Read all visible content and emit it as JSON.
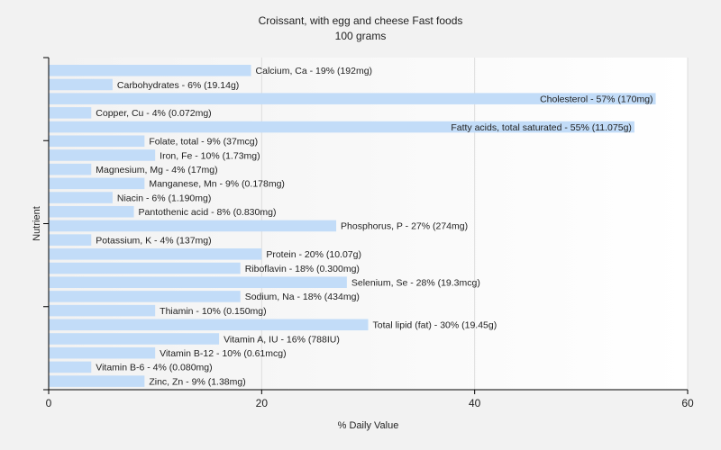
{
  "chart_data": {
    "type": "bar",
    "orientation": "horizontal",
    "title": "Croissant, with egg and cheese Fast foods",
    "subtitle": "100 grams",
    "xlabel": "% Daily Value",
    "ylabel": "Nutrient",
    "xlim": [
      0,
      60
    ],
    "xticks": [
      0,
      20,
      40,
      60
    ],
    "grid": true,
    "bar_color": "#c2dcf8",
    "categories": [
      "Calcium, Ca",
      "Carbohydrates",
      "Cholesterol",
      "Copper, Cu",
      "Fatty acids, total saturated",
      "Folate, total",
      "Iron, Fe",
      "Magnesium, Mg",
      "Manganese, Mn",
      "Niacin",
      "Pantothenic acid",
      "Phosphorus, P",
      "Potassium, K",
      "Protein",
      "Riboflavin",
      "Selenium, Se",
      "Sodium, Na",
      "Thiamin",
      "Total lipid (fat)",
      "Vitamin A, IU",
      "Vitamin B-12",
      "Vitamin B-6",
      "Zinc, Zn"
    ],
    "values": [
      19,
      6,
      57,
      4,
      55,
      9,
      10,
      4,
      9,
      6,
      8,
      27,
      4,
      20,
      18,
      28,
      18,
      10,
      30,
      16,
      10,
      4,
      9
    ],
    "labels": [
      "Calcium, Ca - 19% (192mg)",
      "Carbohydrates - 6% (19.14g)",
      "Cholesterol - 57% (170mg)",
      "Copper, Cu - 4% (0.072mg)",
      "Fatty acids, total saturated - 55% (11.075g)",
      "Folate, total - 9% (37mcg)",
      "Iron, Fe - 10% (1.73mg)",
      "Magnesium, Mg - 4% (17mg)",
      "Manganese, Mn - 9% (0.178mg)",
      "Niacin - 6% (1.190mg)",
      "Pantothenic acid - 8% (0.830mg)",
      "Phosphorus, P - 27% (274mg)",
      "Potassium, K - 4% (137mg)",
      "Protein - 20% (10.07g)",
      "Riboflavin - 18% (0.300mg)",
      "Selenium, Se - 28% (19.3mcg)",
      "Sodium, Na - 18% (434mg)",
      "Thiamin - 10% (0.150mg)",
      "Total lipid (fat) - 30% (19.45g)",
      "Vitamin A, IU - 16% (788IU)",
      "Vitamin B-12 - 10% (0.61mcg)",
      "Vitamin B-6 - 4% (0.080mg)",
      "Zinc, Zn - 9% (1.38mg)"
    ]
  }
}
